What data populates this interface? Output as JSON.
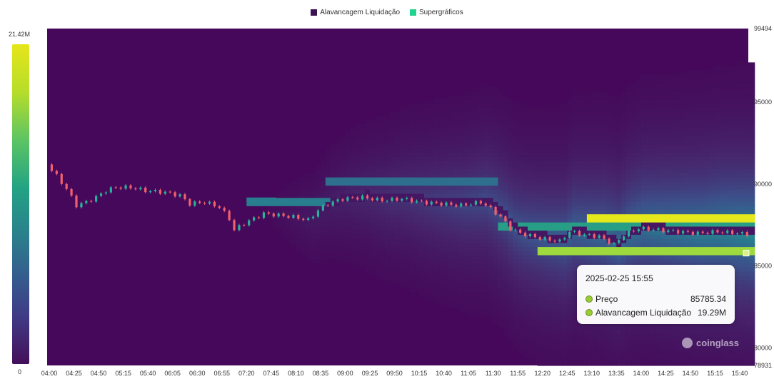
{
  "legend": [
    {
      "label": "Alavancagem Liquidação",
      "color": "#3d1453"
    },
    {
      "label": "Supergráficos",
      "color": "#1fd48d"
    }
  ],
  "colorbar": {
    "max_label": "21.42M",
    "min_label": "0"
  },
  "watermark": "coinglass",
  "tooltip": {
    "date": "2025-02-25 15:55",
    "rows": [
      {
        "label": "Preço",
        "value": "85785.34"
      },
      {
        "label": "Alavancagem Liquidação",
        "value": "19.29M"
      }
    ]
  },
  "chart_data": {
    "type": "heatmap",
    "title": "",
    "ylim": [
      78931,
      99494
    ],
    "y_tick_labels": [
      "99494",
      "95000",
      "90000",
      "85000",
      "80000",
      "78931"
    ],
    "y_ticks": [
      99494,
      95000,
      90000,
      85000,
      80000,
      78931
    ],
    "x_tick_labels": [
      "04:00",
      "04:25",
      "04:50",
      "05:15",
      "05:40",
      "06:05",
      "06:30",
      "06:55",
      "07:20",
      "07:45",
      "08:10",
      "08:35",
      "09:00",
      "09:25",
      "09:50",
      "10:15",
      "10:40",
      "11:05",
      "11:30",
      "11:55",
      "12:20",
      "12:45",
      "13:10",
      "13:35",
      "14:00",
      "14:25",
      "14:50",
      "15:15",
      "15:40"
    ],
    "x_range": [
      "04:00",
      "15:55"
    ],
    "colorscale_range": [
      0,
      21420000
    ],
    "price_path": [
      [
        "04:00",
        91200
      ],
      [
        "04:10",
        90500
      ],
      [
        "04:20",
        89700
      ],
      [
        "04:30",
        88700
      ],
      [
        "04:40",
        88900
      ],
      [
        "04:50",
        89200
      ],
      [
        "05:00",
        89600
      ],
      [
        "05:10",
        89800
      ],
      [
        "05:25",
        89800
      ],
      [
        "05:40",
        89600
      ],
      [
        "06:00",
        89500
      ],
      [
        "06:15",
        89300
      ],
      [
        "06:25",
        88800
      ],
      [
        "06:40",
        88900
      ],
      [
        "06:55",
        88600
      ],
      [
        "07:05",
        87900
      ],
      [
        "07:10",
        87200
      ],
      [
        "07:20",
        87600
      ],
      [
        "07:40",
        88200
      ],
      [
        "07:55",
        88100
      ],
      [
        "08:10",
        88000
      ],
      [
        "08:25",
        87800
      ],
      [
        "08:35",
        88400
      ],
      [
        "08:45",
        88800
      ],
      [
        "09:00",
        89100
      ],
      [
        "09:20",
        89200
      ],
      [
        "09:40",
        89000
      ],
      [
        "10:00",
        89100
      ],
      [
        "10:20",
        88900
      ],
      [
        "10:40",
        88800
      ],
      [
        "11:00",
        88700
      ],
      [
        "11:20",
        88900
      ],
      [
        "11:30",
        88500
      ],
      [
        "11:40",
        88000
      ],
      [
        "11:50",
        87300
      ],
      [
        "12:00",
        87000
      ],
      [
        "12:20",
        86700
      ],
      [
        "12:40",
        86500
      ],
      [
        "12:50",
        87100
      ],
      [
        "13:05",
        86900
      ],
      [
        "13:20",
        86800
      ],
      [
        "13:35",
        86300
      ],
      [
        "13:45",
        86900
      ],
      [
        "14:00",
        87300
      ],
      [
        "14:20",
        87200
      ],
      [
        "14:40",
        87100
      ],
      [
        "15:00",
        87000
      ],
      [
        "15:20",
        87100
      ],
      [
        "15:40",
        87000
      ],
      [
        "15:55",
        86900
      ]
    ],
    "liquidation_bands": [
      {
        "from": "13:05",
        "to": "15:55",
        "price": 87800,
        "value_m": 21.4
      },
      {
        "from": "12:15",
        "to": "15:55",
        "price": 85800,
        "value_m": 19.29
      },
      {
        "from": "07:20",
        "to": "08:40",
        "price": 88900,
        "value_m": 11.0
      },
      {
        "from": "08:40",
        "to": "11:30",
        "price": 90100,
        "value_m": 9.5
      },
      {
        "from": "11:35",
        "to": "15:55",
        "price": 87300,
        "value_m": 14.0
      }
    ]
  }
}
